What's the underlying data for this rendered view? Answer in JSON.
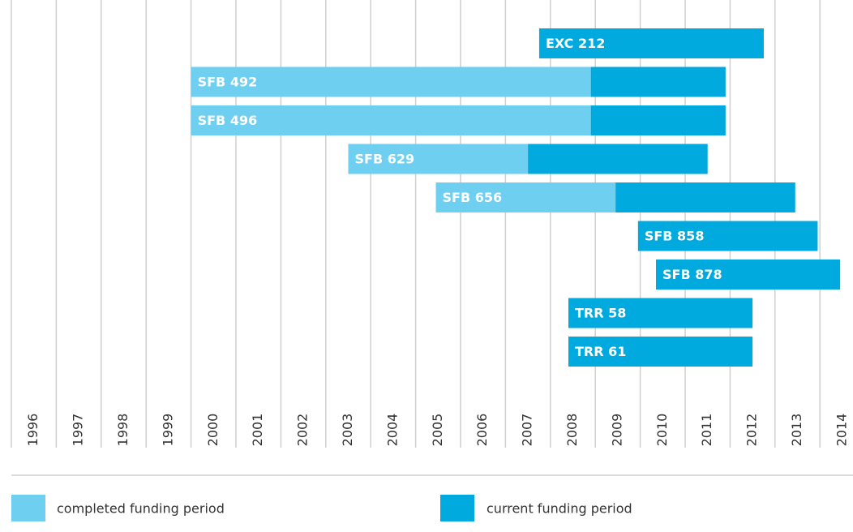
{
  "chart_data": {
    "type": "gantt",
    "categories": [
      "EXC 212",
      "SFB 492",
      "SFB 496",
      "SFB 629",
      "SFB 656",
      "SFB 858",
      "SFB 878",
      "TRR 58",
      "TRR 61"
    ],
    "series": [
      {
        "name": "completed funding period",
        "color": "#6ecff0",
        "start": [
          null,
          2000,
          2000,
          2003.5,
          2005.45,
          null,
          null,
          null,
          null
        ],
        "end": [
          null,
          2008.9,
          2008.9,
          2007.5,
          2009.45,
          null,
          null,
          null,
          null
        ]
      },
      {
        "name": "current funding period",
        "color": "#00a9de",
        "start": [
          2007.75,
          2008.9,
          2008.9,
          2007.5,
          2009.45,
          2009.95,
          2010.35,
          2008.4,
          2008.4
        ],
        "end": [
          2012.75,
          2011.9,
          2011.9,
          2011.5,
          2013.45,
          2013.95,
          2014.45,
          2012.5,
          2012.5
        ]
      }
    ],
    "xlim": [
      1996,
      2015
    ],
    "xticks": [
      1996,
      1997,
      1998,
      1999,
      2000,
      2001,
      2002,
      2003,
      2004,
      2005,
      2006,
      2007,
      2008,
      2009,
      2010,
      2011,
      2012,
      2013,
      2014
    ],
    "grid": true
  }
}
